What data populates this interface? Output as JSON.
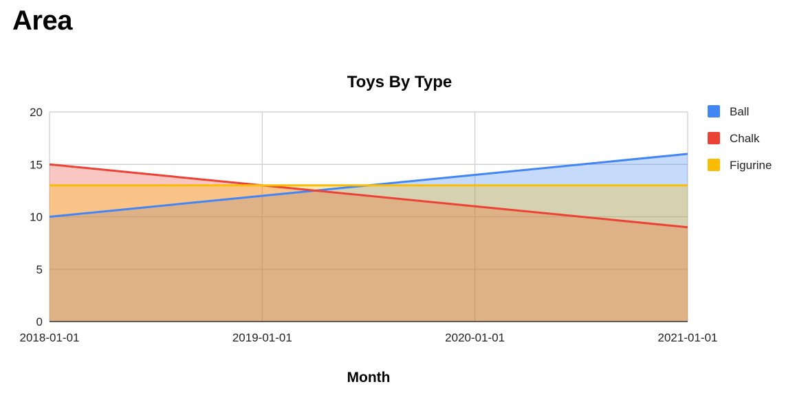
{
  "page": {
    "heading": "Area"
  },
  "chart_data": {
    "type": "area",
    "title": "Toys By Type",
    "xlabel": "Month",
    "ylabel": "",
    "x": [
      "2018-01-01",
      "2019-01-01",
      "2020-01-01",
      "2021-01-01"
    ],
    "ylim": [
      0,
      20
    ],
    "yticks": [
      0,
      5,
      10,
      15,
      20
    ],
    "grid": true,
    "legend_position": "right",
    "series": [
      {
        "name": "Ball",
        "color": "#4285f4",
        "values": [
          10,
          12,
          14,
          16
        ]
      },
      {
        "name": "Chalk",
        "color": "#ea4335",
        "values": [
          15,
          13,
          11,
          9
        ]
      },
      {
        "name": "Figurine",
        "color": "#fbbc04",
        "values": [
          13,
          13,
          13,
          13
        ]
      }
    ]
  }
}
